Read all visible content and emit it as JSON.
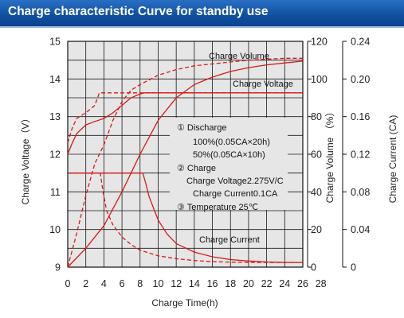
{
  "header": {
    "title": "Charge characteristic Curve for standby use"
  },
  "colors": {
    "curve": "#d81818",
    "grid": "#1a1a1a",
    "plot_bg": "#e6e6e6",
    "header": "#1458a6"
  },
  "chart_data": {
    "type": "line",
    "xlabel": "Charge Time(h)",
    "ylabel_left": "Charge Voltage（V）",
    "ylabel_right1": "Charge Volume （%）",
    "ylabel_right2": "Charge Current (CA)",
    "xlim": [
      0,
      26
    ],
    "ylim_voltage": [
      9,
      15
    ],
    "ylim_volume": [
      0,
      120
    ],
    "ylim_current": [
      0,
      0.24
    ],
    "x_ticks": [
      "0",
      "2",
      "4",
      "6",
      "8",
      "10",
      "12",
      "14",
      "16",
      "18",
      "20",
      "22",
      "24",
      "26",
      "28"
    ],
    "voltage_ticks": [
      "9",
      "10",
      "11",
      "12",
      "13",
      "14",
      "15"
    ],
    "volume_ticks": [
      "0",
      "20",
      "40",
      "60",
      "80",
      "100",
      "120"
    ],
    "current_ticks": [
      "0",
      "0.04",
      "0.08",
      "0.12",
      "0.16",
      "0.20",
      "0.24"
    ],
    "grid": true,
    "annotations": [
      "①  Discharge",
      "100%(0.05CA×20h)",
      "50%(0.05CA×10h)",
      "②  Charge",
      "Charge Voltage2.275V/C",
      "Charge Current0.1CA",
      "③  Temperature 25℃"
    ],
    "curve_labels": {
      "volume": "Charge Volume",
      "voltage": "Charge Voltage",
      "current": "Charge Current"
    },
    "series": [
      {
        "label": "Charge Voltage",
        "axis": "voltage",
        "style": "solid",
        "points": [
          [
            0,
            12.0
          ],
          [
            0.5,
            12.3
          ],
          [
            1,
            12.55
          ],
          [
            2,
            12.78
          ],
          [
            3,
            12.87
          ],
          [
            4,
            12.95
          ],
          [
            5,
            13.1
          ],
          [
            6,
            13.3
          ],
          [
            7,
            13.5
          ],
          [
            8,
            13.6
          ],
          [
            8.5,
            13.63
          ],
          [
            26,
            13.63
          ]
        ]
      },
      {
        "label": "Charge Voltage",
        "axis": "voltage",
        "style": "dashed",
        "points": [
          [
            0,
            12.3
          ],
          [
            0.5,
            12.7
          ],
          [
            1,
            12.95
          ],
          [
            2,
            13.1
          ],
          [
            3,
            13.3
          ],
          [
            3.5,
            13.63
          ],
          [
            26,
            13.63
          ]
        ]
      },
      {
        "label": "Charge Volume",
        "axis": "volume",
        "style": "solid",
        "points": [
          [
            0,
            0
          ],
          [
            2,
            10
          ],
          [
            4,
            22
          ],
          [
            6,
            40
          ],
          [
            8,
            60
          ],
          [
            10,
            78
          ],
          [
            12,
            90
          ],
          [
            14,
            97
          ],
          [
            16,
            101
          ],
          [
            18,
            104
          ],
          [
            20,
            106
          ],
          [
            22,
            107.5
          ],
          [
            24,
            108.5
          ],
          [
            26,
            109.5
          ]
        ]
      },
      {
        "label": "Charge Volume",
        "axis": "volume",
        "style": "dashed",
        "points": [
          [
            0,
            0
          ],
          [
            1,
            18
          ],
          [
            2,
            38
          ],
          [
            3,
            55
          ],
          [
            4,
            65
          ],
          [
            5,
            78
          ],
          [
            6,
            88
          ],
          [
            7,
            94
          ],
          [
            8,
            97
          ],
          [
            10,
            102
          ],
          [
            12,
            105
          ],
          [
            14,
            107
          ],
          [
            16,
            108
          ],
          [
            18,
            109
          ],
          [
            20,
            110
          ],
          [
            22,
            110.5
          ],
          [
            24,
            111
          ],
          [
            26,
            111
          ]
        ]
      },
      {
        "label": "Charge Current",
        "axis": "current",
        "style": "solid",
        "points": [
          [
            0,
            0.1
          ],
          [
            8.3,
            0.1
          ],
          [
            8.6,
            0.09
          ],
          [
            9,
            0.075
          ],
          [
            10,
            0.05
          ],
          [
            11,
            0.035
          ],
          [
            12,
            0.025
          ],
          [
            14,
            0.016
          ],
          [
            16,
            0.011
          ],
          [
            18,
            0.008
          ],
          [
            20,
            0.0065
          ],
          [
            22,
            0.0055
          ],
          [
            24,
            0.005
          ],
          [
            26,
            0.005
          ]
        ]
      },
      {
        "label": "Charge Current",
        "axis": "current",
        "style": "dashed",
        "points": [
          [
            0,
            0.1
          ],
          [
            3.6,
            0.1
          ],
          [
            3.9,
            0.08
          ],
          [
            4.3,
            0.06
          ],
          [
            5,
            0.045
          ],
          [
            6,
            0.032
          ],
          [
            7,
            0.024
          ],
          [
            8,
            0.018
          ],
          [
            10,
            0.012
          ],
          [
            12,
            0.009
          ],
          [
            14,
            0.007
          ],
          [
            16,
            0.0058
          ],
          [
            18,
            0.0052
          ],
          [
            20,
            0.005
          ],
          [
            22,
            0.005
          ],
          [
            24,
            0.005
          ],
          [
            26,
            0.005
          ]
        ]
      }
    ]
  }
}
